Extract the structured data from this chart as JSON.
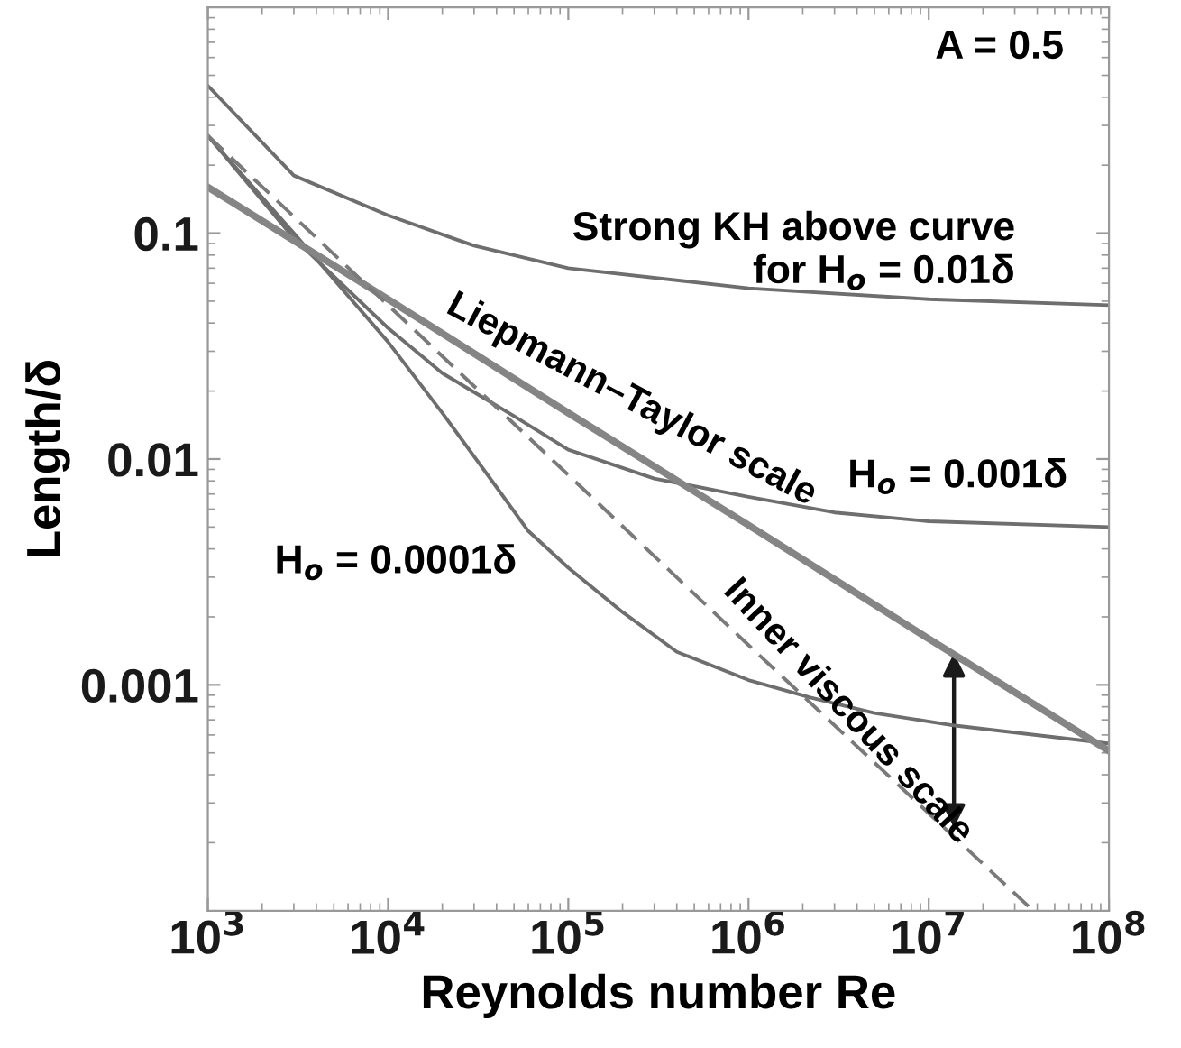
{
  "chart_data": {
    "type": "line",
    "xlabel": "Reynolds number Re",
    "ylabel": "Length/δ",
    "log": "xy",
    "xlim": [
      1000,
      100000000
    ],
    "ylim": [
      0.0001,
      1
    ],
    "xticks": [
      {
        "value": 1000,
        "label": "10$^{3}$"
      },
      {
        "value": 10000,
        "label": "10$^{4}$"
      },
      {
        "value": 100000,
        "label": "10$^{5}$"
      },
      {
        "value": 1000000,
        "label": "10$^{6}$"
      },
      {
        "value": 10000000,
        "label": "10$^{7}$"
      },
      {
        "value": 100000000,
        "label": "10$^{8}$"
      }
    ],
    "yticks": [
      0.001,
      0.01,
      0.1
    ],
    "grid": false,
    "marker": "none",
    "series": [
      {
        "color": "#6e6e6e",
        "x": [
          1000,
          3000,
          10000,
          30000,
          100000,
          1000000,
          10000000,
          100000000
        ],
        "values": [
          0.45,
          0.18,
          0.12,
          0.088,
          0.07,
          0.057,
          0.051,
          0.048
        ]
      },
      {
        "color": "#6e6e6e",
        "x": [
          1000,
          3000,
          10000,
          20000,
          50000,
          100000,
          300000,
          1000000,
          3000000,
          10000000,
          100000000
        ],
        "values": [
          0.27,
          0.095,
          0.038,
          0.024,
          0.0155,
          0.011,
          0.0082,
          0.0068,
          0.0058,
          0.0053,
          0.005
        ]
      },
      {
        "color": "#6e6e6e",
        "x": [
          1000,
          3000,
          10000,
          20000,
          40000,
          60000,
          100000,
          200000,
          400000,
          1000000,
          2200000,
          5000000,
          14000000,
          100000000
        ],
        "values": [
          0.27,
          0.1,
          0.033,
          0.016,
          0.0075,
          0.0048,
          0.0033,
          0.0021,
          0.0014,
          0.00105,
          0.00088,
          0.00075,
          0.00066,
          0.00055
        ]
      },
      {
        "color": "#858585",
        "x": [
          1000,
          10000,
          100000,
          1000000,
          10000000,
          100000000
        ],
        "values": [
          0.16,
          0.051,
          0.016,
          0.0051,
          0.0016,
          0.00051
        ]
      },
      {
        "color": "#7a7a7a",
        "line_style": "dashed",
        "x": [
          1000,
          10000,
          100000,
          1000000,
          10000000,
          38000000
        ],
        "values": [
          0.27,
          0.048,
          0.0085,
          0.0015,
          0.00027,
          0.0001
        ]
      }
    ],
    "annotations": [
      "A = 0.5",
      "Strong KH above curve\nfor H$_{o}$ = 0.01δ",
      "Liepmann–Taylor scale",
      "H$_{o}$ = 0.001δ",
      "H$_{o}$ = 0.0001δ",
      "Inner viscous scale"
    ]
  }
}
